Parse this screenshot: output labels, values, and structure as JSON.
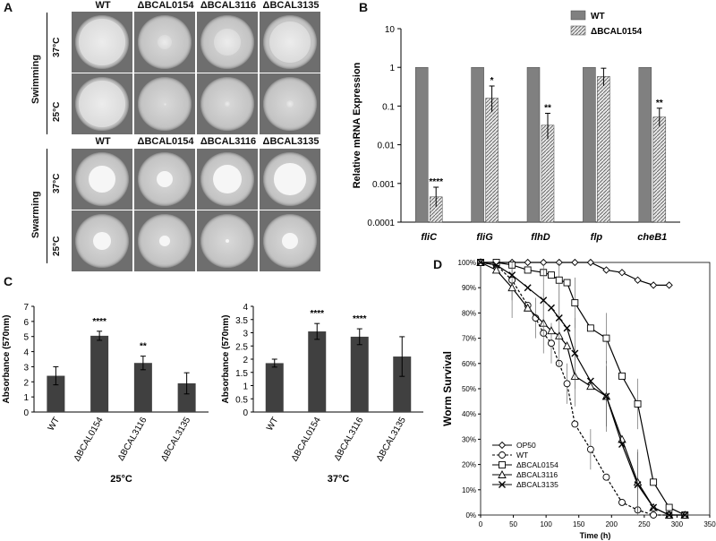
{
  "panels": {
    "A": {
      "letter": "A",
      "top_headers": [
        "WT",
        "ΔBCAL0154",
        "ΔBCAL3116",
        "ΔBCAL3135"
      ],
      "bottom_headers": [
        "WT",
        "ΔBCAL0154",
        "ΔBCAL3116",
        "ΔBCAL3135"
      ],
      "swimming_label": "Swimming",
      "swarming_label": "Swarming",
      "temp_37": "37°C",
      "temp_25": "25°C",
      "swimming_37_spot": [
        0.95,
        0.3,
        0.55,
        0.85
      ],
      "swimming_25_spot": [
        0.95,
        0.05,
        0.1,
        0.15
      ],
      "swarming_37_spot": [
        0.55,
        0.35,
        0.6,
        0.65
      ],
      "swarming_25_spot": [
        0.38,
        0.22,
        0.08,
        0.35
      ]
    },
    "B": {
      "letter": "B"
    },
    "C": {
      "letter": "C"
    },
    "D": {
      "letter": "D"
    }
  },
  "chart_data": [
    {
      "id": "B",
      "type": "bar",
      "ylabel": "Relative mRNA Expression",
      "yscale": "log",
      "ylim": [
        0.0001,
        10
      ],
      "yticks": [
        "10",
        "1",
        "0.1",
        "0.01",
        "0.001",
        "0.0001"
      ],
      "categories": [
        "fliC",
        "fliG",
        "flhD",
        "flp",
        "cheB1"
      ],
      "series": [
        {
          "name": "WT",
          "color": "#808080",
          "values": [
            1,
            1,
            1,
            1,
            1
          ],
          "errors": [
            0,
            0,
            0,
            0,
            0
          ]
        },
        {
          "name": "ΔBCAL0154",
          "color": "#cccccc",
          "hatched": true,
          "values": [
            0.00045,
            0.16,
            0.032,
            0.58,
            0.052
          ],
          "err_hi": [
            0.0008,
            0.33,
            0.065,
            0.95,
            0.088
          ],
          "err_lo": [
            0.00025,
            0.07,
            0.014,
            0.33,
            0.03
          ]
        }
      ],
      "significance": [
        "****",
        "*",
        "**",
        "",
        "**"
      ],
      "legend_position": "top-right"
    },
    {
      "id": "C1",
      "type": "bar",
      "ylabel": "Absorbance (570nm)",
      "xlabel": "25°C",
      "ylim": [
        0,
        7
      ],
      "yticks": [
        "0",
        "1",
        "2",
        "3",
        "4",
        "5",
        "6",
        "7"
      ],
      "categories": [
        "WT",
        "ΔBCAL0154",
        "ΔBCAL3116",
        "ΔBCAL3135"
      ],
      "values": [
        2.4,
        5.05,
        3.25,
        1.9
      ],
      "errors": [
        0.6,
        0.3,
        0.45,
        0.7
      ],
      "significance": [
        "",
        "****",
        "**",
        ""
      ],
      "color": "#404040"
    },
    {
      "id": "C2",
      "type": "bar",
      "ylabel": "Absorbance (570nm)",
      "xlabel": "37°C",
      "ylim": [
        0,
        4
      ],
      "yticks": [
        "0",
        "0.5",
        "1",
        "1.5",
        "2",
        "2.5",
        "3",
        "3.5",
        "4"
      ],
      "categories": [
        "WT",
        "ΔBCAL0154",
        "ΔBCAL3116",
        "ΔBCAL3135"
      ],
      "values": [
        1.85,
        3.05,
        2.85,
        2.1
      ],
      "errors": [
        0.15,
        0.3,
        0.3,
        0.75
      ],
      "significance": [
        "",
        "****",
        "****",
        ""
      ],
      "color": "#404040"
    },
    {
      "id": "D",
      "type": "line",
      "ylabel": "Worm Survival",
      "xlabel": "Time (h)",
      "xlim": [
        0,
        350
      ],
      "ylim": [
        0,
        100
      ],
      "xticks": [
        "0",
        "50",
        "100",
        "150",
        "200",
        "250",
        "300",
        "350"
      ],
      "yticks": [
        "0%",
        "10%",
        "20%",
        "30%",
        "40%",
        "50%",
        "60%",
        "70%",
        "80%",
        "90%",
        "100%"
      ],
      "legend_position": "bottom-left",
      "series": [
        {
          "name": "OP50",
          "marker": "diamond",
          "dashed": false,
          "x": [
            0,
            24,
            48,
            72,
            96,
            120,
            144,
            168,
            192,
            216,
            240,
            264,
            288
          ],
          "y": [
            100,
            100,
            100,
            100,
            100,
            100,
            100,
            100,
            97,
            96,
            93,
            91,
            91
          ]
        },
        {
          "name": "WT",
          "marker": "circle",
          "dashed": true,
          "x": [
            0,
            24,
            48,
            72,
            84,
            96,
            108,
            120,
            132,
            144,
            168,
            192,
            216,
            240,
            264,
            288
          ],
          "y": [
            100,
            99,
            93,
            83,
            78,
            72,
            68,
            60,
            52,
            36,
            26,
            15,
            5,
            2,
            0,
            0
          ]
        },
        {
          "name": "ΔBCAL0154",
          "marker": "square",
          "dashed": false,
          "x": [
            0,
            24,
            48,
            72,
            96,
            108,
            120,
            132,
            144,
            168,
            192,
            216,
            240,
            264,
            288,
            312
          ],
          "y": [
            100,
            100,
            99,
            97,
            96,
            95,
            93,
            92,
            84,
            74,
            70,
            55,
            44,
            13,
            3,
            0
          ]
        },
        {
          "name": "ΔBCAL3116",
          "marker": "triangle",
          "dashed": false,
          "x": [
            0,
            24,
            48,
            72,
            96,
            108,
            120,
            132,
            144,
            168,
            192,
            216,
            240,
            264,
            288,
            312
          ],
          "y": [
            100,
            97,
            90,
            82,
            76,
            73,
            71,
            67,
            55,
            51,
            47,
            30,
            13,
            3,
            0,
            0
          ]
        },
        {
          "name": "ΔBCAL3135",
          "marker": "cross",
          "dashed": false,
          "x": [
            0,
            24,
            48,
            72,
            96,
            108,
            120,
            132,
            144,
            168,
            192,
            216,
            240,
            264,
            288,
            312
          ],
          "y": [
            100,
            99,
            95,
            90,
            85,
            82,
            78,
            74,
            64,
            53,
            47,
            28,
            12,
            3,
            0,
            0
          ]
        }
      ]
    }
  ]
}
